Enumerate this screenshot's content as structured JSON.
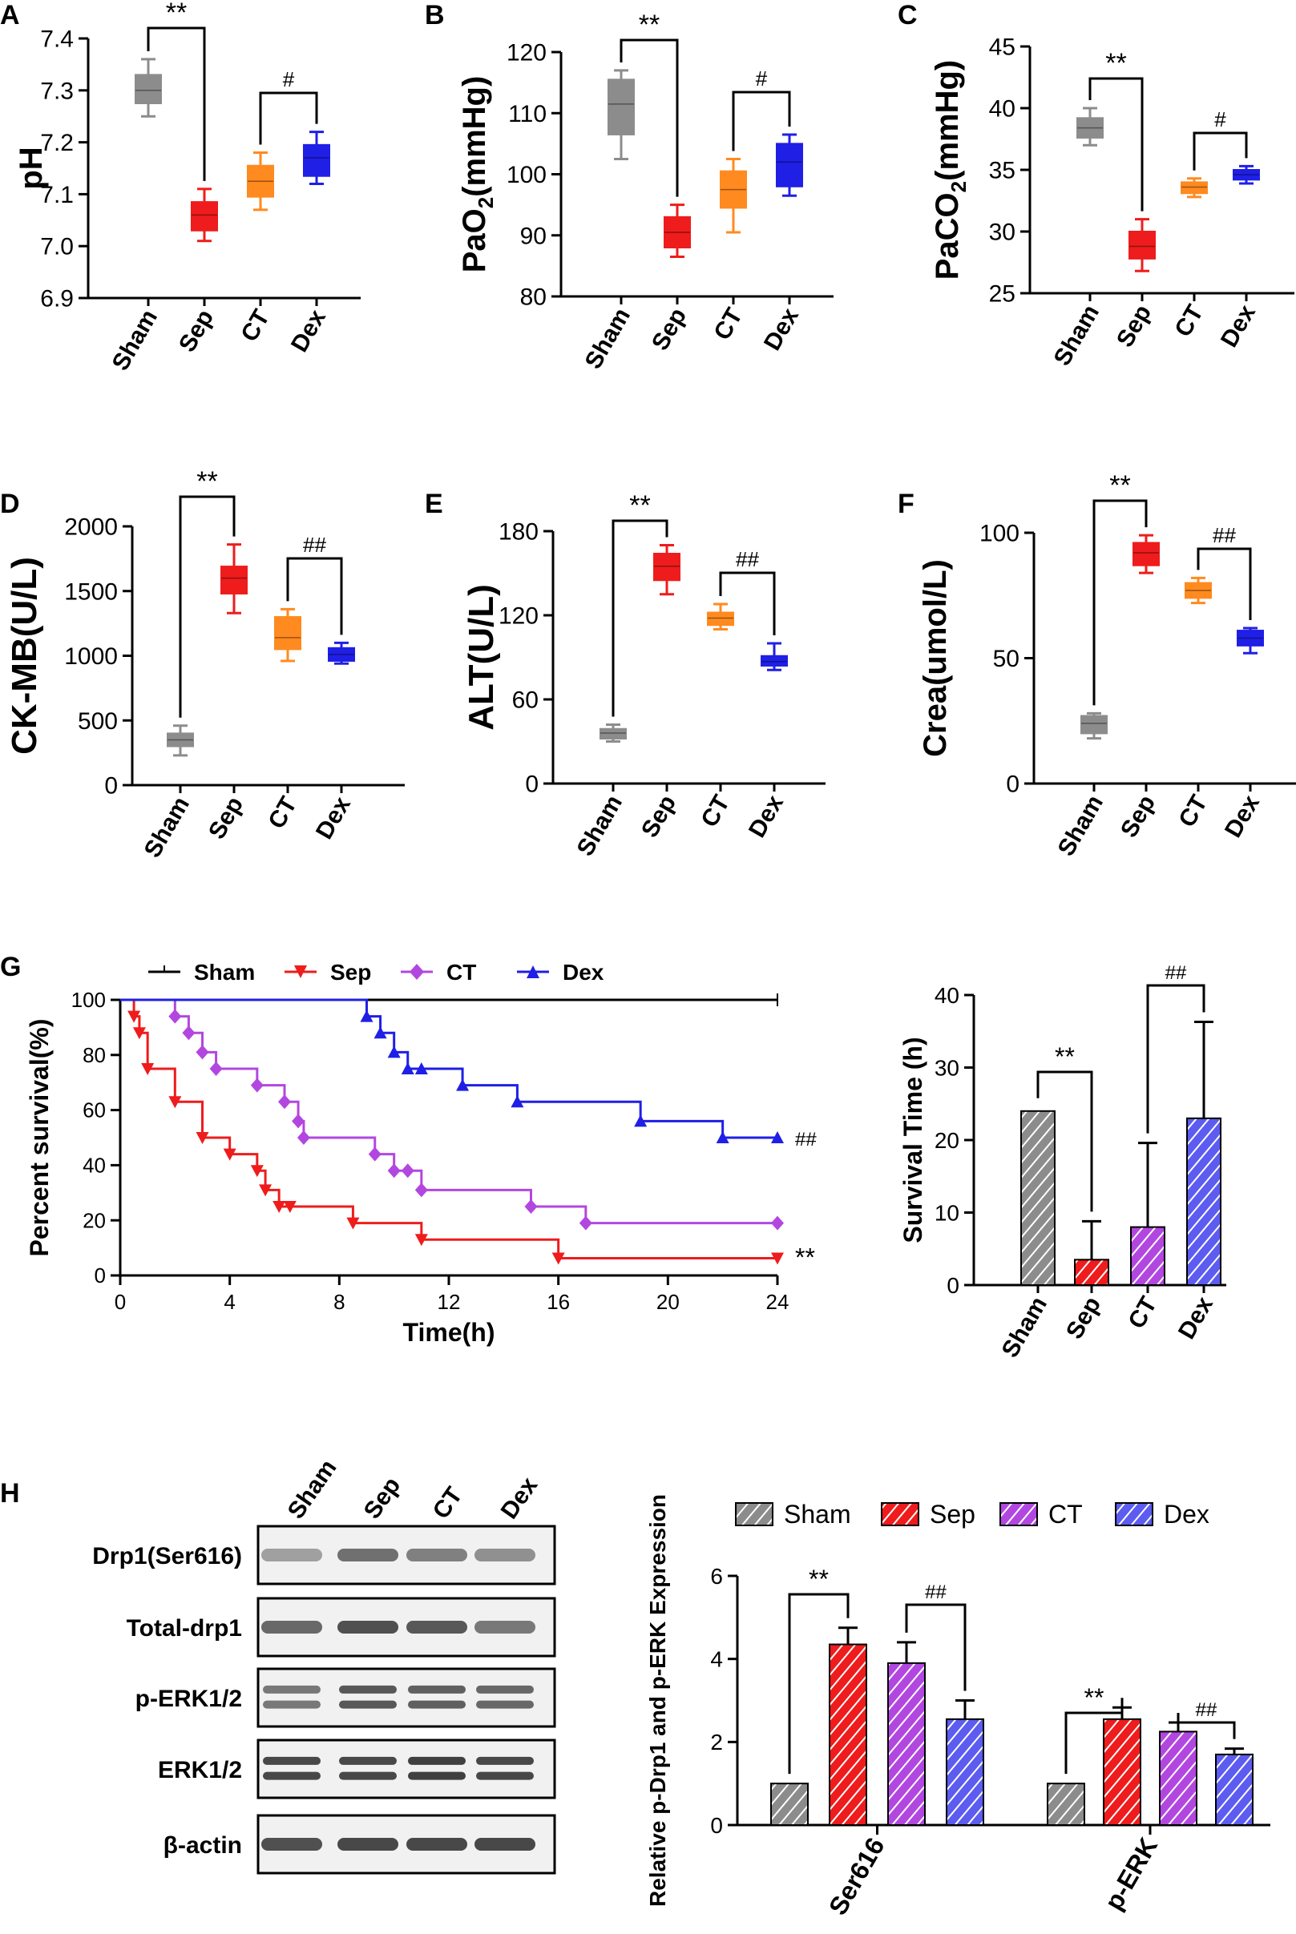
{
  "panels": {
    "A": "A",
    "B": "B",
    "C": "C",
    "D": "D",
    "E": "E",
    "F": "F",
    "G": "G",
    "H": "H"
  },
  "colors": {
    "Sham": "#8c8c8c",
    "Sep": "#ee1c1c",
    "CT": "#ff8a1f",
    "Dex": "#1f1fe6",
    "CT_survival": "#b247e0"
  },
  "chart_data": [
    {
      "id": "A",
      "type": "box",
      "ylabel": "pH",
      "ylim": [
        6.9,
        7.4
      ],
      "yticks": [
        "6.9",
        "7.0",
        "7.1",
        "7.2",
        "7.3",
        "7.4"
      ],
      "categories": [
        "Sham",
        "Sep",
        "CT",
        "Dex"
      ],
      "boxes": [
        {
          "min": 7.25,
          "q1": 7.275,
          "median": 7.3,
          "q3": 7.33,
          "max": 7.36
        },
        {
          "min": 7.01,
          "q1": 7.03,
          "median": 7.06,
          "q3": 7.085,
          "max": 7.11
        },
        {
          "min": 7.07,
          "q1": 7.095,
          "median": 7.125,
          "q3": 7.155,
          "max": 7.18
        },
        {
          "min": 7.12,
          "q1": 7.135,
          "median": 7.17,
          "q3": 7.195,
          "max": 7.22
        }
      ],
      "brackets": [
        {
          "from": 0,
          "to": 1,
          "label": "**"
        },
        {
          "from": 2,
          "to": 3,
          "label": "#"
        }
      ]
    },
    {
      "id": "B",
      "type": "box",
      "ylabel": "PaO",
      "ylabel_sub": "2",
      "ylabel_suffix": "(mmHg)",
      "ylim": [
        80,
        120
      ],
      "yticks": [
        "80",
        "90",
        "100",
        "110",
        "120"
      ],
      "categories": [
        "Sham",
        "Sep",
        "CT",
        "Dex"
      ],
      "boxes": [
        {
          "min": 102.5,
          "q1": 106.5,
          "median": 111.5,
          "q3": 115.5,
          "max": 117
        },
        {
          "min": 86.5,
          "q1": 88,
          "median": 90.5,
          "q3": 93,
          "max": 95
        },
        {
          "min": 90.5,
          "q1": 94.5,
          "median": 97.5,
          "q3": 100.5,
          "max": 102.5
        },
        {
          "min": 96.5,
          "q1": 98,
          "median": 102,
          "q3": 105,
          "max": 106.5
        }
      ],
      "brackets": [
        {
          "from": 0,
          "to": 1,
          "label": "**"
        },
        {
          "from": 2,
          "to": 3,
          "label": "#"
        }
      ]
    },
    {
      "id": "C",
      "type": "box",
      "ylabel": "PaCO",
      "ylabel_sub": "2",
      "ylabel_suffix": "(mmHg)",
      "ylim": [
        25,
        45
      ],
      "yticks": [
        "25",
        "30",
        "35",
        "40",
        "45"
      ],
      "categories": [
        "Sham",
        "Sep",
        "CT",
        "Dex"
      ],
      "boxes": [
        {
          "min": 37,
          "q1": 37.6,
          "median": 38.4,
          "q3": 39.2,
          "max": 40
        },
        {
          "min": 26.8,
          "q1": 27.8,
          "median": 28.8,
          "q3": 30,
          "max": 31
        },
        {
          "min": 32.8,
          "q1": 33.1,
          "median": 33.6,
          "q3": 34,
          "max": 34.3
        },
        {
          "min": 33.9,
          "q1": 34.2,
          "median": 34.6,
          "q3": 35,
          "max": 35.3
        }
      ],
      "brackets": [
        {
          "from": 0,
          "to": 1,
          "label": "**"
        },
        {
          "from": 2,
          "to": 3,
          "label": "#"
        }
      ]
    },
    {
      "id": "D",
      "type": "box",
      "ylabel": "CK-MB(U/L)",
      "ylim": [
        0,
        2000
      ],
      "yticks": [
        "0",
        "500",
        "1000",
        "1500",
        "2000"
      ],
      "categories": [
        "Sham",
        "Sep",
        "CT",
        "Dex"
      ],
      "boxes": [
        {
          "min": 230,
          "q1": 300,
          "median": 350,
          "q3": 400,
          "max": 460
        },
        {
          "min": 1330,
          "q1": 1480,
          "median": 1600,
          "q3": 1690,
          "max": 1860
        },
        {
          "min": 960,
          "q1": 1050,
          "median": 1140,
          "q3": 1300,
          "max": 1360
        },
        {
          "min": 940,
          "q1": 960,
          "median": 1010,
          "q3": 1060,
          "max": 1100
        }
      ],
      "brackets": [
        {
          "from": 0,
          "to": 1,
          "label": "**"
        },
        {
          "from": 2,
          "to": 3,
          "label": "##"
        }
      ]
    },
    {
      "id": "E",
      "type": "box",
      "ylabel": "ALT(U/L)",
      "ylim": [
        0,
        180
      ],
      "yticks": [
        "0",
        "60",
        "120",
        "180"
      ],
      "categories": [
        "Sham",
        "Sep",
        "CT",
        "Dex"
      ],
      "boxes": [
        {
          "min": 30,
          "q1": 32,
          "median": 36,
          "q3": 39,
          "max": 42
        },
        {
          "min": 135,
          "q1": 145,
          "median": 155,
          "q3": 164,
          "max": 170
        },
        {
          "min": 110,
          "q1": 113,
          "median": 118,
          "q3": 122,
          "max": 128
        },
        {
          "min": 81,
          "q1": 84,
          "median": 87,
          "q3": 91,
          "max": 100
        }
      ],
      "brackets": [
        {
          "from": 0,
          "to": 1,
          "label": "**"
        },
        {
          "from": 2,
          "to": 3,
          "label": "##"
        }
      ]
    },
    {
      "id": "F",
      "type": "box",
      "ylabel": "Crea(umol/L)",
      "ylim": [
        0,
        100
      ],
      "yticks": [
        "0",
        "50",
        "100"
      ],
      "categories": [
        "Sham",
        "Sep",
        "CT",
        "Dex"
      ],
      "boxes": [
        {
          "min": 18,
          "q1": 20,
          "median": 24,
          "q3": 27,
          "max": 28
        },
        {
          "min": 84,
          "q1": 87,
          "median": 92,
          "q3": 96,
          "max": 99
        },
        {
          "min": 72,
          "q1": 74,
          "median": 77,
          "q3": 80,
          "max": 82
        },
        {
          "min": 52,
          "q1": 55,
          "median": 58,
          "q3": 61,
          "max": 62
        }
      ],
      "brackets": [
        {
          "from": 0,
          "to": 1,
          "label": "**"
        },
        {
          "from": 2,
          "to": 3,
          "label": "##"
        }
      ]
    },
    {
      "id": "G1",
      "type": "line",
      "title": "",
      "xlabel": "Time(h)",
      "ylabel": "Percent survival(%)",
      "xlim": [
        0,
        24
      ],
      "ylim": [
        0,
        100
      ],
      "xticks": [
        "0",
        "4",
        "8",
        "12",
        "16",
        "20",
        "24"
      ],
      "yticks": [
        "0",
        "20",
        "40",
        "60",
        "80",
        "100"
      ],
      "legend": [
        "Sham",
        "Sep",
        "CT",
        "Dex"
      ],
      "series": [
        {
          "name": "Sham",
          "x": [
            0,
            24
          ],
          "y": [
            100,
            100
          ],
          "censor": [
            24
          ]
        },
        {
          "name": "Sep",
          "x": [
            0,
            0.5,
            0.7,
            1,
            2,
            3,
            4,
            5,
            5.3,
            5.8,
            6.2,
            8.5,
            11,
            16,
            24
          ],
          "y": [
            100,
            94,
            88,
            75,
            63,
            50,
            44,
            38,
            31,
            25,
            25,
            19,
            13,
            6.25,
            6.25
          ]
        },
        {
          "name": "CT",
          "x": [
            0,
            2,
            2.5,
            3,
            3.5,
            5,
            6,
            6.5,
            6.7,
            9.3,
            10,
            10.5,
            11,
            15,
            17,
            24
          ],
          "y": [
            100,
            94,
            88,
            81,
            75,
            69,
            63,
            56,
            50,
            44,
            38,
            38,
            31,
            25,
            19,
            19
          ]
        },
        {
          "name": "Dex",
          "x": [
            0,
            9,
            9.5,
            10,
            10.5,
            11,
            12.5,
            14.5,
            19,
            22,
            24
          ],
          "y": [
            100,
            94,
            88,
            81,
            75,
            75,
            69,
            63,
            56,
            50,
            50
          ]
        }
      ],
      "annotations": [
        {
          "series": "Dex",
          "label": "##"
        },
        {
          "series": "Sep",
          "label": "**"
        }
      ]
    },
    {
      "id": "G2",
      "type": "bar",
      "ylabel": "Survival Time (h)",
      "ylim": [
        0,
        40
      ],
      "yticks": [
        "0",
        "10",
        "20",
        "30",
        "40"
      ],
      "categories": [
        "Sham",
        "Sep",
        "CT",
        "Dex"
      ],
      "values": [
        24,
        3.5,
        8,
        23
      ],
      "errors": [
        0,
        5.3,
        11.6,
        13.3
      ],
      "brackets": [
        {
          "from": 0,
          "to": 1,
          "label": "**"
        },
        {
          "from": 2,
          "to": 3,
          "label": "##"
        }
      ]
    },
    {
      "id": "H2",
      "type": "bar",
      "ylabel": "Relative p-Drp1 and p-ERK Expression",
      "ylim": [
        0,
        6
      ],
      "yticks": [
        "0",
        "2",
        "4",
        "6"
      ],
      "categories": [
        "Ser616",
        "p-ERK"
      ],
      "series": [
        {
          "name": "Sham",
          "values": [
            1,
            1
          ],
          "errors": [
            0,
            0
          ]
        },
        {
          "name": "Sep",
          "values": [
            4.35,
            2.55
          ],
          "errors": [
            0.4,
            0.28
          ]
        },
        {
          "name": "CT",
          "values": [
            3.9,
            2.25
          ],
          "errors": [
            0.5,
            0.22
          ]
        },
        {
          "name": "Dex",
          "values": [
            2.55,
            1.7
          ],
          "errors": [
            0.45,
            0.14
          ]
        }
      ],
      "brackets": [
        {
          "group": 0,
          "from": 0,
          "to": 1,
          "label": "**"
        },
        {
          "group": 0,
          "from": 2,
          "to": 3,
          "label": "##"
        },
        {
          "group": 1,
          "from": 0,
          "to": 1,
          "label": "**"
        },
        {
          "group": 1,
          "from": 2,
          "to": 3,
          "label": "##"
        }
      ]
    }
  ],
  "western_blot": {
    "lanes": [
      "Sham",
      "Sep",
      "CT",
      "Dex"
    ],
    "rows": [
      "Drp1(Ser616)",
      "Total-drp1",
      "p-ERK1/2",
      "ERK1/2",
      "β-actin"
    ],
    "intensity": [
      [
        0.25,
        0.55,
        0.45,
        0.35
      ],
      [
        0.6,
        0.75,
        0.7,
        0.5
      ],
      [
        0.5,
        0.7,
        0.65,
        0.6
      ],
      [
        0.8,
        0.8,
        0.85,
        0.8
      ],
      [
        0.75,
        0.8,
        0.8,
        0.8
      ]
    ]
  }
}
